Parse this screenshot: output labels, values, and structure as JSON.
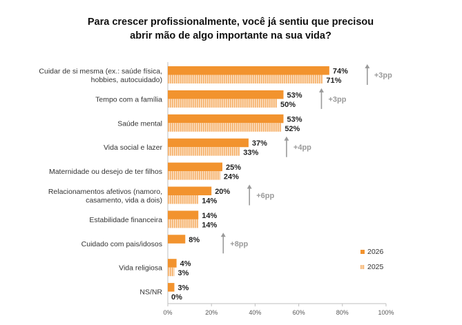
{
  "title_lines": [
    "Para crescer profissionalmente, você já sentiu que precisou",
    "abrir mão de algo importante na sua vida?"
  ],
  "colors": {
    "series_2026": "#f2932e",
    "series_2025": "#f9c896",
    "annotation": "#9a9a9a",
    "axis": "#bfbfbf"
  },
  "chart_data": {
    "type": "bar",
    "orientation": "horizontal",
    "categories": [
      [
        "Cuidar de si mesma (ex.: saúde física,",
        "hobbies, autocuidado)"
      ],
      [
        "Tempo com a família"
      ],
      [
        "Saúde mental"
      ],
      [
        "Vida social e lazer"
      ],
      [
        "Maternidade ou desejo de ter filhos"
      ],
      [
        "Relacionamentos afetivos (namoro,",
        "casamento, vida a dois)"
      ],
      [
        "Estabilidade financeira"
      ],
      [
        "Cuidado com pais/idosos"
      ],
      [
        "Vida religiosa"
      ],
      [
        "NS/NR"
      ]
    ],
    "series": [
      {
        "name": "2026",
        "values": [
          74,
          53,
          53,
          37,
          25,
          20,
          14,
          8,
          4,
          3
        ],
        "labels": [
          "74%",
          "53%",
          "53%",
          "37%",
          "25%",
          "20%",
          "14%",
          "8%",
          "4%",
          "3%"
        ]
      },
      {
        "name": "2025",
        "values": [
          71,
          50,
          52,
          33,
          24,
          14,
          14,
          0,
          3,
          0
        ],
        "labels": [
          "71%",
          "50%",
          "52%",
          "33%",
          "24%",
          "14%",
          "14%",
          null,
          "3%",
          "0%"
        ]
      }
    ],
    "annotations": [
      {
        "category_index": 0,
        "text": "+3pp"
      },
      {
        "category_index": 1,
        "text": "+3pp"
      },
      {
        "category_index": 3,
        "text": "+4pp"
      },
      {
        "category_index": 5,
        "text": "+6pp"
      },
      {
        "category_index": 7,
        "text": "+8pp"
      }
    ],
    "xlim": [
      0,
      100
    ],
    "x_ticks": [
      0,
      20,
      40,
      60,
      80,
      100
    ],
    "x_tick_labels": [
      "0%",
      "20%",
      "40%",
      "60%",
      "80%",
      "100%"
    ],
    "legend": {
      "position": "right",
      "entries": [
        "2026",
        "2025"
      ]
    },
    "grid": false
  }
}
